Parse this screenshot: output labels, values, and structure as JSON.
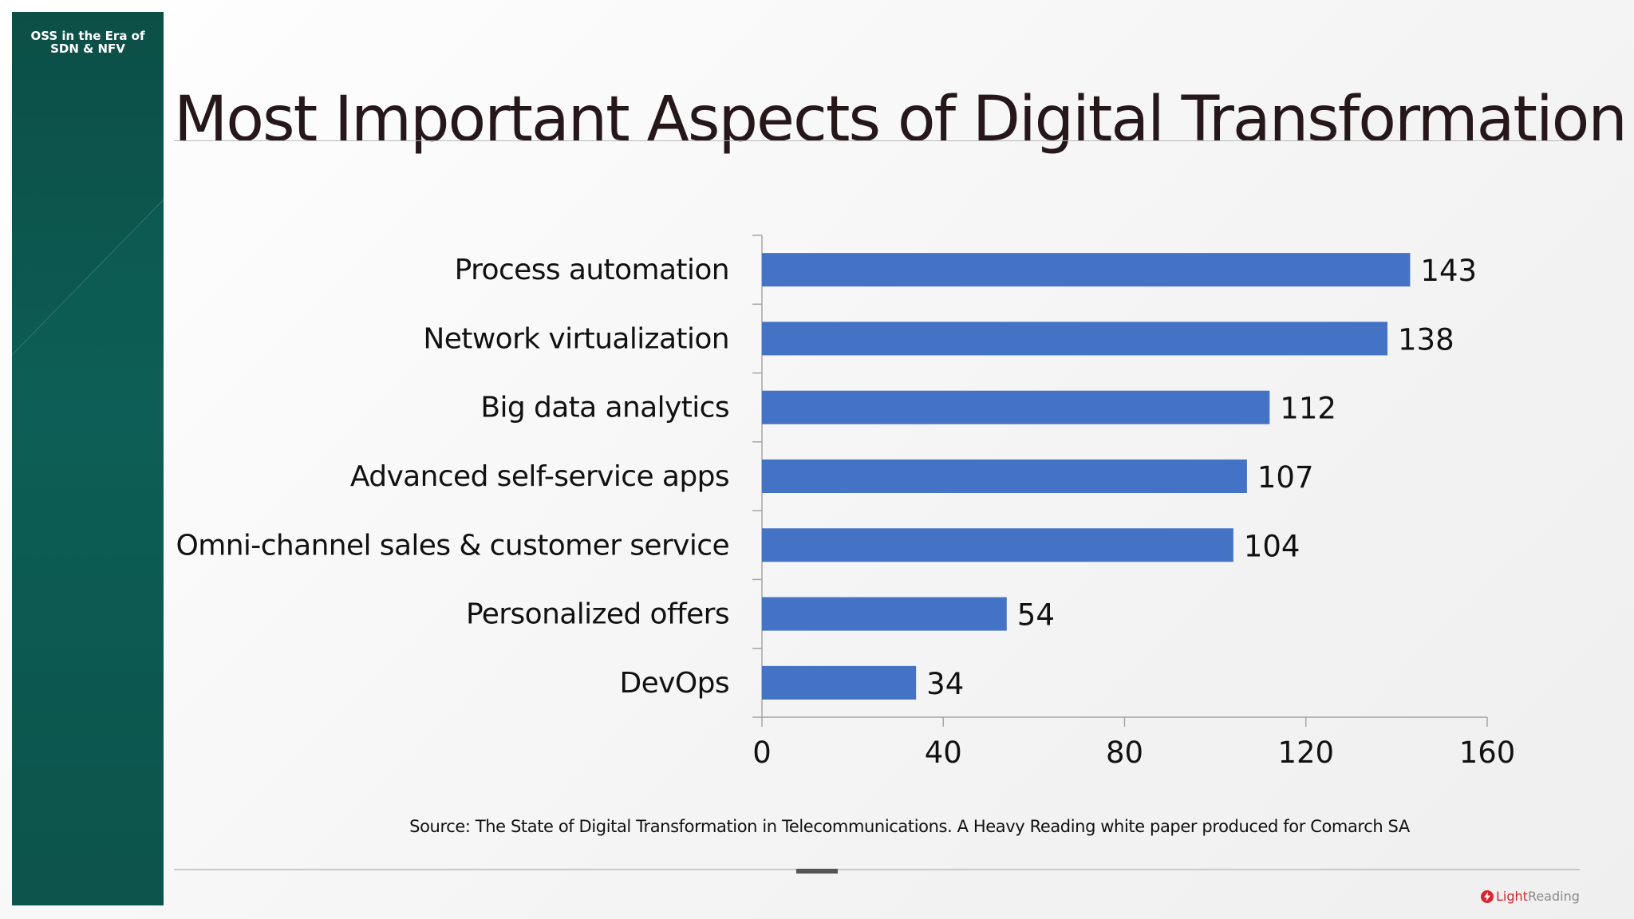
{
  "sidebar": {
    "title_line1": "OSS in the Era of",
    "title_line2": "SDN & NFV",
    "color": "#0d5d55"
  },
  "slide": {
    "title": "Most Important Aspects of Digital Transformation",
    "source": "Source: The State of Digital Transformation in Telecommunications. A Heavy Reading white paper produced for Comarch SA"
  },
  "logo": {
    "light": "Light",
    "reading": "Reading",
    "icon": "lightning-bolt-icon",
    "color": "#d9262e"
  },
  "chart_data": {
    "type": "bar",
    "orientation": "horizontal",
    "categories": [
      "Process automation",
      "Network virtualization",
      "Big data analytics",
      "Advanced self-service apps",
      "Omni-channel sales & customer service",
      "Personalized offers",
      "DevOps"
    ],
    "values": [
      143,
      138,
      112,
      107,
      104,
      54,
      34
    ],
    "xlim": [
      0,
      160
    ],
    "xticks": [
      0,
      40,
      80,
      120,
      160
    ],
    "bar_color": "#4472c4",
    "data_labels": true,
    "grid": false,
    "legend": "none"
  }
}
